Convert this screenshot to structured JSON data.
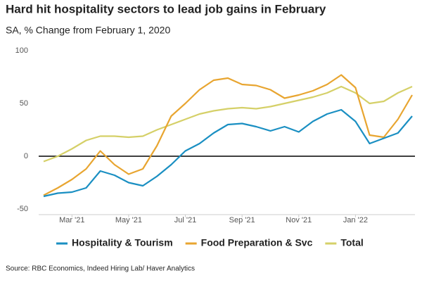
{
  "chart_data": {
    "type": "line",
    "title": "Hard hit hospitality sectors to lead job gains in February",
    "subtitle": "SA, % Change from February 1, 2020",
    "source": "Source: RBC Economics, Indeed Hiring Lab/ Haver Analytics",
    "categories": [
      null,
      null,
      "Mar '21",
      null,
      null,
      null,
      "May '21",
      null,
      null,
      null,
      "Jul '21",
      null,
      null,
      null,
      "Sep '21",
      null,
      null,
      null,
      "Nov '21",
      null,
      null,
      null,
      "Jan '22",
      null,
      null,
      null,
      null
    ],
    "series": [
      {
        "name": "Hospitality & Tourism",
        "color": "#1a8fc2",
        "values": [
          -38,
          -35,
          -34,
          -30,
          -14,
          -18,
          -25,
          -28,
          -19,
          -8,
          5,
          12,
          22,
          30,
          31,
          28,
          24,
          28,
          23,
          33,
          40,
          44,
          33,
          12,
          17,
          22,
          38
        ]
      },
      {
        "name": "Food Preparation & Svc",
        "color": "#e8a530",
        "values": [
          -37,
          -30,
          -22,
          -12,
          5,
          -8,
          -17,
          -12,
          10,
          38,
          50,
          63,
          72,
          74,
          68,
          67,
          63,
          55,
          58,
          62,
          68,
          77,
          65,
          20,
          18,
          35,
          58
        ]
      },
      {
        "name": "Total",
        "color": "#d5d068",
        "values": [
          -5,
          0,
          7,
          15,
          19,
          19,
          18,
          19,
          25,
          30,
          35,
          40,
          43,
          45,
          46,
          45,
          47,
          50,
          53,
          56,
          60,
          66,
          60,
          50,
          52,
          60,
          66
        ]
      }
    ],
    "ylim": [
      -50,
      100
    ],
    "yticks": [
      -50,
      0,
      50,
      100
    ],
    "grid": false
  }
}
